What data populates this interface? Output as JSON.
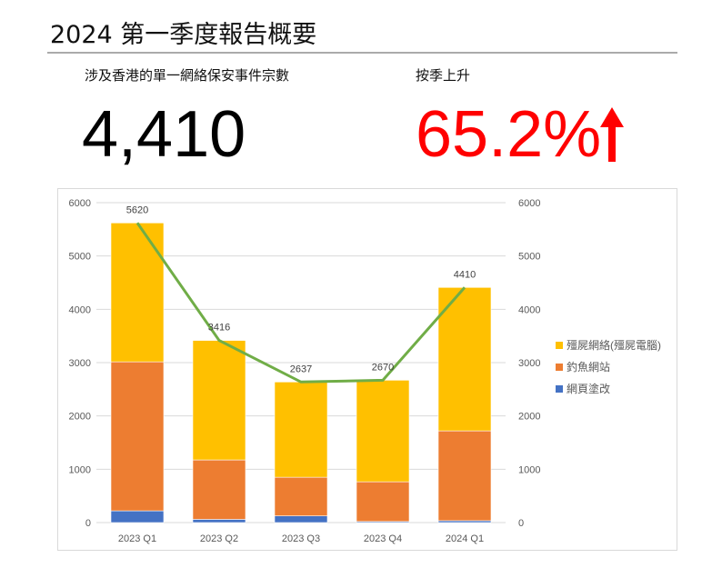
{
  "header": {
    "title": "2024 第一季度報告概要"
  },
  "kpis": [
    {
      "label": "涉及香港的單一網絡保安事件宗數",
      "value": "4,410"
    },
    {
      "label": "按季上升",
      "value": "65.2%",
      "icon": "arrow-up-icon",
      "color": "#ff0000"
    }
  ],
  "chart_data": {
    "type": "bar",
    "stacked": true,
    "categories": [
      "2023 Q1",
      "2023 Q2",
      "2023 Q3",
      "2023 Q4",
      "2024 Q1"
    ],
    "series": [
      {
        "name": "網頁塗改",
        "color": "#4472c4",
        "values": [
          220,
          60,
          125,
          20,
          35
        ]
      },
      {
        "name": "釣魚網站",
        "color": "#ed7d31",
        "values": [
          2795,
          1115,
          725,
          745,
          1685
        ]
      },
      {
        "name": "殭屍網絡(殭屍電腦)",
        "color": "#ffc000",
        "values": [
          2605,
          2241,
          1787,
          1905,
          2690
        ]
      }
    ],
    "line": {
      "color": "#70ad47",
      "values": [
        5620,
        3416,
        2637,
        2670,
        4410
      ],
      "labels": [
        "5620",
        "3416",
        "2637",
        "2670",
        "4410"
      ]
    },
    "ylim": [
      0,
      6000
    ],
    "yticks": [
      "0",
      "1000",
      "2000",
      "3000",
      "4000",
      "5000",
      "6000"
    ],
    "y2ticks": [
      "0",
      "1000",
      "2000",
      "3000",
      "4000",
      "5000",
      "6000"
    ],
    "grid": true,
    "legend": "right"
  }
}
